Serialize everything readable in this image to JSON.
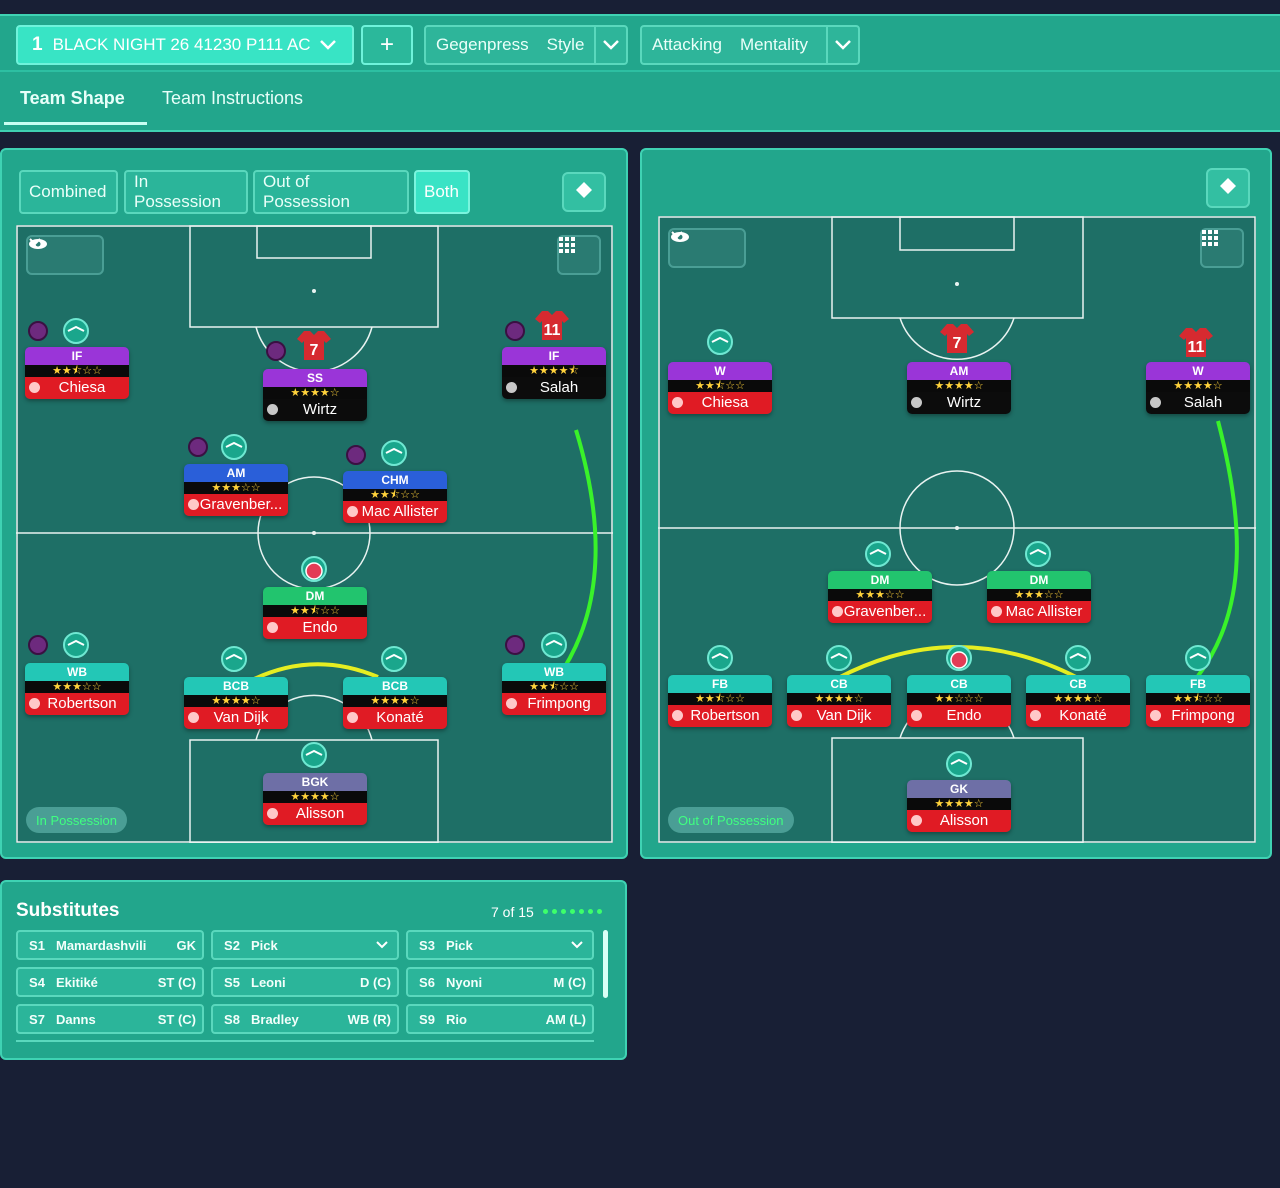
{
  "tactic": {
    "number": "1",
    "name": "BLACK NIGHT 26 41230 P111 AC"
  },
  "plus_label": "+",
  "style": {
    "value": "Gegenpress",
    "label": "Style"
  },
  "mentality": {
    "value": "Attacking",
    "label": "Mentality"
  },
  "tabs": {
    "team_shape": "Team Shape",
    "team_instructions": "Team Instructions"
  },
  "phase_buttons": [
    "Combined",
    "In Possession",
    "Out of Possession",
    "Both"
  ],
  "left_panel": {
    "phase_label": "In Possession",
    "players": [
      {
        "role": "IF",
        "stars": "★★⯪☆☆",
        "name": "Chiesa",
        "color": "purple",
        "name_bg": "red"
      },
      {
        "role": "SS",
        "stars": "★★★★☆",
        "name": "Wirtz",
        "color": "purple",
        "name_bg": "black"
      },
      {
        "role": "IF",
        "stars": "★★★★⯪",
        "name": "Salah",
        "color": "purple",
        "name_bg": "black"
      },
      {
        "role": "AM",
        "stars": "★★★☆☆",
        "name": "Gravenber...",
        "color": "blue",
        "name_bg": "red"
      },
      {
        "role": "CHM",
        "stars": "★★⯪☆☆",
        "name": "Mac Allister",
        "color": "blue",
        "name_bg": "red"
      },
      {
        "role": "DM",
        "stars": "★★⯪☆☆",
        "name": "Endo",
        "color": "green",
        "name_bg": "red"
      },
      {
        "role": "WB",
        "stars": "★★★☆☆",
        "name": "Robertson",
        "color": "teal",
        "name_bg": "red"
      },
      {
        "role": "BCB",
        "stars": "★★★★☆",
        "name": "Van Dijk",
        "color": "teal",
        "name_bg": "red"
      },
      {
        "role": "BCB",
        "stars": "★★★★☆",
        "name": "Konaté",
        "color": "teal",
        "name_bg": "red"
      },
      {
        "role": "WB",
        "stars": "★★⯪☆☆",
        "name": "Frimpong",
        "color": "teal",
        "name_bg": "red"
      },
      {
        "role": "BGK",
        "stars": "★★★★☆",
        "name": "Alisson",
        "color": "slate",
        "name_bg": "red"
      }
    ]
  },
  "right_panel": {
    "phase_label": "Out of Possession",
    "players": [
      {
        "role": "W",
        "stars": "★★⯪☆☆",
        "name": "Chiesa",
        "color": "purple",
        "name_bg": "red"
      },
      {
        "role": "AM",
        "stars": "★★★★☆",
        "name": "Wirtz",
        "color": "purple",
        "name_bg": "black"
      },
      {
        "role": "W",
        "stars": "★★★★☆",
        "name": "Salah",
        "color": "purple",
        "name_bg": "black"
      },
      {
        "role": "DM",
        "stars": "★★★☆☆",
        "name": "Gravenber...",
        "color": "green",
        "name_bg": "red"
      },
      {
        "role": "DM",
        "stars": "★★★☆☆",
        "name": "Mac Allister",
        "color": "green",
        "name_bg": "red"
      },
      {
        "role": "FB",
        "stars": "★★⯪☆☆",
        "name": "Robertson",
        "color": "teal",
        "name_bg": "red"
      },
      {
        "role": "CB",
        "stars": "★★★★☆",
        "name": "Van Dijk",
        "color": "teal",
        "name_bg": "red"
      },
      {
        "role": "CB",
        "stars": "★★☆☆☆",
        "name": "Endo",
        "color": "teal",
        "name_bg": "red"
      },
      {
        "role": "CB",
        "stars": "★★★★☆",
        "name": "Konaté",
        "color": "teal",
        "name_bg": "red"
      },
      {
        "role": "FB",
        "stars": "★★⯪☆☆",
        "name": "Frimpong",
        "color": "teal",
        "name_bg": "red"
      },
      {
        "role": "GK",
        "stars": "★★★★☆",
        "name": "Alisson",
        "color": "slate",
        "name_bg": "red"
      }
    ]
  },
  "shirt_numbers": {
    "wirtz": "7",
    "salah": "11"
  },
  "substitutes": {
    "title": "Substitutes",
    "count": "7 of 15",
    "rows": [
      {
        "id": "S1",
        "name": "Mamardashvili",
        "pos": "GK"
      },
      {
        "id": "S2",
        "name": "Pick",
        "pos": ""
      },
      {
        "id": "S3",
        "name": "Pick",
        "pos": ""
      },
      {
        "id": "S4",
        "name": "Ekitiké",
        "pos": "ST (C)"
      },
      {
        "id": "S5",
        "name": "Leoni",
        "pos": "D (C)"
      },
      {
        "id": "S6",
        "name": "Nyoni",
        "pos": "M (C)"
      },
      {
        "id": "S7",
        "name": "Danns",
        "pos": "ST (C)"
      },
      {
        "id": "S8",
        "name": "Bradley",
        "pos": "WB (R)"
      },
      {
        "id": "S9",
        "name": "Rio",
        "pos": "AM (L)"
      }
    ]
  },
  "colors": {
    "accent": "#22a68c",
    "pitch": "#1e6f66",
    "background": "#181f35",
    "highlight": "#39e3c5"
  }
}
